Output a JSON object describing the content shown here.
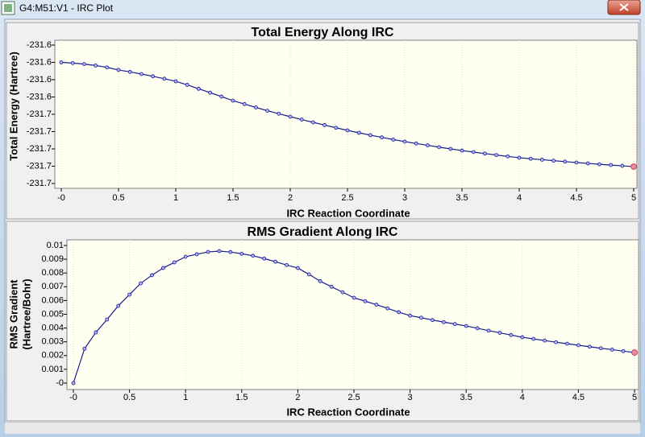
{
  "window": {
    "title": "G4:M51:V1 - IRC Plot"
  },
  "chart_data": [
    {
      "type": "line",
      "title": "Total Energy Along IRC",
      "xlabel": "IRC Reaction Coordinate",
      "ylabel": "Total Energy (Hartree)",
      "x": [
        0,
        0.1,
        0.2,
        0.3,
        0.4,
        0.5,
        0.6,
        0.7,
        0.8,
        0.9,
        1,
        1.1,
        1.2,
        1.3,
        1.4,
        1.5,
        1.6,
        1.7,
        1.8,
        1.9,
        2,
        2.1,
        2.2,
        2.3,
        2.4,
        2.5,
        2.6,
        2.7,
        2.8,
        2.9,
        3,
        3.1,
        3.2,
        3.3,
        3.4,
        3.5,
        3.6,
        3.7,
        3.8,
        3.9,
        4,
        4.1,
        4.2,
        4.3,
        4.4,
        4.5,
        4.6,
        4.7,
        4.8,
        4.9,
        5
      ],
      "values": [
        -231.6,
        -231.6008,
        -231.602,
        -231.6036,
        -231.6058,
        -231.6088,
        -231.611,
        -231.6135,
        -231.6161,
        -231.6189,
        -231.6219,
        -231.626,
        -231.6305,
        -231.635,
        -231.6396,
        -231.6442,
        -231.6482,
        -231.6521,
        -231.6559,
        -231.6594,
        -231.6628,
        -231.6661,
        -231.6693,
        -231.6725,
        -231.6756,
        -231.6786,
        -231.6814,
        -231.6841,
        -231.6867,
        -231.6892,
        -231.6916,
        -231.6938,
        -231.6959,
        -231.698,
        -231.7,
        -231.7019,
        -231.7037,
        -231.7054,
        -231.7071,
        -231.7087,
        -231.7102,
        -231.7114,
        -231.7125,
        -231.7136,
        -231.7147,
        -231.7158,
        -231.7168,
        -231.7178,
        -231.7187,
        -231.7196,
        -231.7205
      ],
      "color": "#1a1a8c",
      "grid": true,
      "xlim": [
        0,
        5
      ],
      "xticks": [
        {
          "value": 0,
          "label": "-0"
        },
        0.5,
        1,
        1.5,
        2,
        2.5,
        3,
        3.5,
        4,
        4.5,
        5
      ],
      "ylim": [
        -231.74,
        -231.58
      ],
      "yticks": [
        {
          "value": -231.58,
          "label": "-231.6"
        },
        {
          "value": -231.6,
          "label": "-231.6"
        },
        {
          "value": -231.62,
          "label": "-231.6"
        },
        {
          "value": -231.64,
          "label": "-231.6"
        },
        {
          "value": -231.66,
          "label": "-231.7"
        },
        {
          "value": -231.68,
          "label": "-231.7"
        },
        {
          "value": -231.7,
          "label": "-231.7"
        },
        {
          "value": -231.72,
          "label": "-231.7"
        },
        {
          "value": -231.74,
          "label": "-231.7"
        }
      ]
    },
    {
      "type": "line",
      "title": "RMS Gradient Along IRC",
      "xlabel": "IRC Reaction Coordinate",
      "ylabel": [
        "RMS Gradient",
        "(Hartree/Bohr)"
      ],
      "x": [
        0,
        0.1,
        0.2,
        0.3,
        0.4,
        0.5,
        0.6,
        0.7,
        0.8,
        0.9,
        1,
        1.1,
        1.2,
        1.3,
        1.4,
        1.5,
        1.6,
        1.7,
        1.8,
        1.9,
        2,
        2.1,
        2.2,
        2.3,
        2.4,
        2.5,
        2.6,
        2.7,
        2.8,
        2.9,
        3,
        3.1,
        3.2,
        3.3,
        3.4,
        3.5,
        3.6,
        3.7,
        3.8,
        3.9,
        4,
        4.1,
        4.2,
        4.3,
        4.4,
        4.5,
        4.6,
        4.7,
        4.8,
        4.9,
        5
      ],
      "values": [
        0,
        0.0025,
        0.00368,
        0.00462,
        0.00561,
        0.00643,
        0.00725,
        0.00784,
        0.00836,
        0.00877,
        0.00918,
        0.00936,
        0.00953,
        0.00959,
        0.00952,
        0.0094,
        0.00925,
        0.00905,
        0.00882,
        0.00858,
        0.00836,
        0.0079,
        0.0074,
        0.007,
        0.0066,
        0.0062,
        0.00595,
        0.0057,
        0.00543,
        0.00515,
        0.0049,
        0.00475,
        0.00458,
        0.00443,
        0.00429,
        0.00415,
        0.00398,
        0.00381,
        0.00365,
        0.00349,
        0.00333,
        0.00321,
        0.00309,
        0.00297,
        0.00286,
        0.00275,
        0.00264,
        0.00253,
        0.00243,
        0.00232,
        0.00222
      ],
      "color": "#1a1a8c",
      "grid": true,
      "xlim": [
        0,
        5
      ],
      "xticks": [
        {
          "value": 0,
          "label": "-0"
        },
        0.5,
        1,
        1.5,
        2,
        2.5,
        3,
        3.5,
        4,
        4.5,
        5
      ],
      "ylim": [
        0,
        0.01
      ],
      "yticks": [
        {
          "value": 0,
          "label": "-0"
        },
        0.001,
        0.002,
        0.003,
        0.004,
        0.005,
        0.006,
        0.007,
        0.008,
        0.009,
        0.01
      ]
    }
  ]
}
